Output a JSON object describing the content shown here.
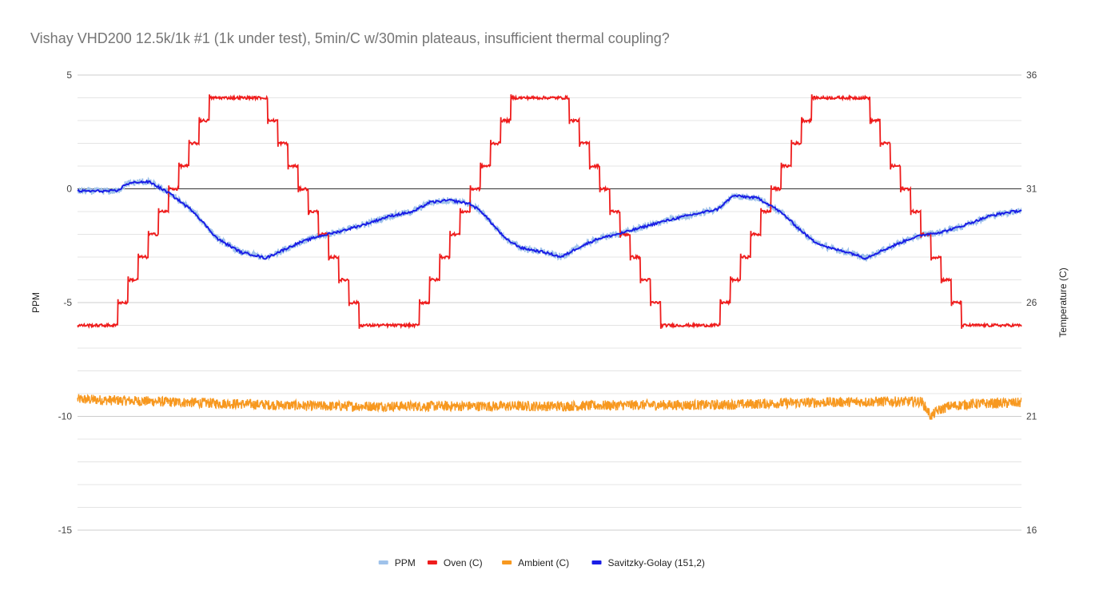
{
  "chart_data": {
    "type": "line",
    "title": "Vishay VHD200 12.5k/1k #1 (1k under test), 5min/C w/30min plateaus, insufficient thermal coupling?",
    "ylabel": "PPM",
    "y2label": "Temperature (C)",
    "ylim": [
      -15,
      5
    ],
    "y2lim": [
      16,
      36
    ],
    "yticks": [
      "5",
      "0",
      "-5",
      "-10",
      "-15"
    ],
    "y2ticks": [
      "36",
      "31",
      "26",
      "21",
      "16"
    ],
    "grid": true,
    "legend_position": "bottom",
    "x_range": [
      0,
      1180
    ],
    "series": [
      {
        "name": "PPM",
        "axis": "left",
        "color": "#9fc2ea",
        "points": [
          [
            0,
            -0.1
          ],
          [
            50,
            -0.1
          ],
          [
            60,
            0.2
          ],
          [
            75,
            0.3
          ],
          [
            90,
            0.3
          ],
          [
            100,
            0.1
          ],
          [
            115,
            -0.2
          ],
          [
            130,
            -0.6
          ],
          [
            145,
            -1.0
          ],
          [
            160,
            -1.6
          ],
          [
            175,
            -2.2
          ],
          [
            190,
            -2.5
          ],
          [
            205,
            -2.8
          ],
          [
            220,
            -2.9
          ],
          [
            235,
            -3.05
          ],
          [
            250,
            -2.8
          ],
          [
            275,
            -2.4
          ],
          [
            300,
            -2.1
          ],
          [
            330,
            -1.85
          ],
          [
            360,
            -1.55
          ],
          [
            390,
            -1.2
          ],
          [
            420,
            -1.0
          ],
          [
            440,
            -0.6
          ],
          [
            465,
            -0.5
          ],
          [
            490,
            -0.65
          ],
          [
            505,
            -1.0
          ],
          [
            520,
            -1.6
          ],
          [
            535,
            -2.2
          ],
          [
            555,
            -2.6
          ],
          [
            585,
            -2.8
          ],
          [
            605,
            -3.0
          ],
          [
            625,
            -2.6
          ],
          [
            650,
            -2.2
          ],
          [
            680,
            -1.95
          ],
          [
            700,
            -1.75
          ],
          [
            730,
            -1.45
          ],
          [
            760,
            -1.2
          ],
          [
            800,
            -0.9
          ],
          [
            820,
            -0.3
          ],
          [
            835,
            -0.35
          ],
          [
            850,
            -0.4
          ],
          [
            870,
            -0.8
          ],
          [
            885,
            -1.2
          ],
          [
            900,
            -1.7
          ],
          [
            920,
            -2.3
          ],
          [
            940,
            -2.6
          ],
          [
            965,
            -2.8
          ],
          [
            985,
            -3.05
          ],
          [
            1000,
            -2.8
          ],
          [
            1020,
            -2.5
          ],
          [
            1040,
            -2.2
          ],
          [
            1060,
            -2.0
          ],
          [
            1080,
            -1.9
          ],
          [
            1100,
            -1.7
          ],
          [
            1120,
            -1.45
          ],
          [
            1140,
            -1.2
          ],
          [
            1160,
            -1.05
          ],
          [
            1180,
            -0.95
          ]
        ]
      },
      {
        "name": "Oven (C)",
        "axis": "right",
        "color": "#ee1c1c",
        "profile": {
          "start_temp": 25,
          "steps_up": [
            [
              0,
              25
            ],
            [
              50,
              26
            ],
            [
              63,
              27
            ],
            [
              76,
              28
            ],
            [
              89,
              29
            ],
            [
              102,
              30
            ],
            [
              114,
              31
            ],
            [
              127,
              32
            ],
            [
              140,
              33
            ],
            [
              152,
              34
            ],
            [
              165,
              35
            ],
            [
              238,
              35
            ]
          ],
          "steps_down": [
            [
              238,
              34
            ],
            [
              251,
              33
            ],
            [
              264,
              32
            ],
            [
              276,
              31
            ],
            [
              289,
              30
            ],
            [
              302,
              29
            ],
            [
              315,
              28
            ],
            [
              327,
              27
            ],
            [
              340,
              26
            ],
            [
              353,
              25
            ],
            [
              427,
              25
            ]
          ],
          "period_temps_up": [
            26,
            27,
            28,
            29,
            30,
            31,
            32,
            33,
            34,
            35
          ],
          "period_temps_down": [
            34,
            33,
            32,
            31,
            30,
            29,
            28,
            27,
            26,
            25
          ],
          "cycle_starts": [
            50,
            427,
            803
          ],
          "hold_top_length": 73,
          "hold_bottom_length": 74,
          "step_length": 12.7,
          "end_x": 1180
        }
      },
      {
        "name": "Ambient (C)",
        "axis": "right",
        "color": "#f7981f",
        "points": [
          [
            0,
            21.75
          ],
          [
            100,
            21.65
          ],
          [
            200,
            21.55
          ],
          [
            300,
            21.45
          ],
          [
            400,
            21.45
          ],
          [
            500,
            21.45
          ],
          [
            600,
            21.45
          ],
          [
            700,
            21.5
          ],
          [
            800,
            21.5
          ],
          [
            900,
            21.6
          ],
          [
            1000,
            21.65
          ],
          [
            1055,
            21.65
          ],
          [
            1060,
            21.4
          ],
          [
            1067,
            21.0
          ],
          [
            1075,
            21.25
          ],
          [
            1090,
            21.45
          ],
          [
            1120,
            21.55
          ],
          [
            1180,
            21.6
          ]
        ]
      },
      {
        "name": "Savitzky-Golay (151,2)",
        "axis": "left",
        "color": "#1a1ee6",
        "points": [
          [
            0,
            -0.1
          ],
          [
            50,
            -0.1
          ],
          [
            60,
            0.2
          ],
          [
            75,
            0.3
          ],
          [
            90,
            0.3
          ],
          [
            100,
            0.1
          ],
          [
            115,
            -0.2
          ],
          [
            130,
            -0.6
          ],
          [
            145,
            -1.0
          ],
          [
            160,
            -1.6
          ],
          [
            175,
            -2.2
          ],
          [
            190,
            -2.5
          ],
          [
            205,
            -2.8
          ],
          [
            220,
            -2.9
          ],
          [
            235,
            -3.05
          ],
          [
            250,
            -2.8
          ],
          [
            275,
            -2.4
          ],
          [
            300,
            -2.1
          ],
          [
            330,
            -1.85
          ],
          [
            360,
            -1.55
          ],
          [
            390,
            -1.2
          ],
          [
            420,
            -1.0
          ],
          [
            440,
            -0.6
          ],
          [
            465,
            -0.5
          ],
          [
            490,
            -0.65
          ],
          [
            505,
            -1.0
          ],
          [
            520,
            -1.6
          ],
          [
            535,
            -2.2
          ],
          [
            555,
            -2.6
          ],
          [
            585,
            -2.8
          ],
          [
            605,
            -3.0
          ],
          [
            625,
            -2.6
          ],
          [
            650,
            -2.2
          ],
          [
            680,
            -1.95
          ],
          [
            700,
            -1.75
          ],
          [
            730,
            -1.45
          ],
          [
            760,
            -1.2
          ],
          [
            800,
            -0.9
          ],
          [
            820,
            -0.3
          ],
          [
            835,
            -0.35
          ],
          [
            850,
            -0.4
          ],
          [
            870,
            -0.8
          ],
          [
            885,
            -1.2
          ],
          [
            900,
            -1.7
          ],
          [
            920,
            -2.3
          ],
          [
            940,
            -2.6
          ],
          [
            965,
            -2.8
          ],
          [
            985,
            -3.05
          ],
          [
            1000,
            -2.8
          ],
          [
            1020,
            -2.5
          ],
          [
            1040,
            -2.2
          ],
          [
            1060,
            -2.0
          ],
          [
            1080,
            -1.9
          ],
          [
            1100,
            -1.7
          ],
          [
            1120,
            -1.45
          ],
          [
            1140,
            -1.2
          ],
          [
            1160,
            -1.05
          ],
          [
            1180,
            -0.95
          ]
        ]
      }
    ]
  }
}
